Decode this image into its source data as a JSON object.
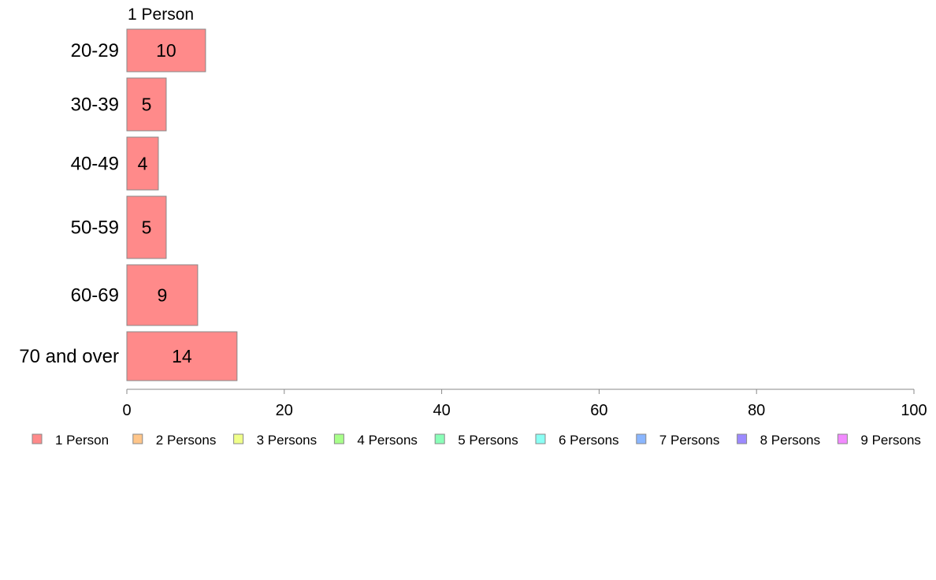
{
  "chart_data": {
    "type": "bar",
    "orientation": "horizontal",
    "stacked": true,
    "categories": [
      "20-29",
      "30-39",
      "40-49",
      "50-59",
      "60-69",
      "70 and over"
    ],
    "series": [
      {
        "name": "1 Person",
        "color": "#ff8a8a",
        "values": [
          10,
          5,
          4,
          5,
          9,
          14
        ]
      },
      {
        "name": "2 Persons",
        "color": "#ffc68a",
        "values": [
          0,
          0,
          0,
          0,
          0,
          0
        ]
      },
      {
        "name": "3 Persons",
        "color": "#f0ff8a",
        "values": [
          0,
          0,
          0,
          0,
          0,
          0
        ]
      },
      {
        "name": "4 Persons",
        "color": "#a8ff8a",
        "values": [
          0,
          0,
          0,
          0,
          0,
          0
        ]
      },
      {
        "name": "5 Persons",
        "color": "#8affb8",
        "values": [
          0,
          0,
          0,
          0,
          0,
          0
        ]
      },
      {
        "name": "6 Persons",
        "color": "#8afff4",
        "values": [
          0,
          0,
          0,
          0,
          0,
          0
        ]
      },
      {
        "name": "7 Persons",
        "color": "#8ab6ff",
        "values": [
          0,
          0,
          0,
          0,
          0,
          0
        ]
      },
      {
        "name": "8 Persons",
        "color": "#9c8aff",
        "values": [
          0,
          0,
          0,
          0,
          0,
          0
        ]
      },
      {
        "name": "9 Persons",
        "color": "#f28aff",
        "values": [
          0,
          0,
          0,
          0,
          0,
          0
        ]
      }
    ],
    "series_label": "1 Person",
    "xlim": [
      0,
      100
    ],
    "x_ticks": [
      0,
      20,
      40,
      60,
      80,
      100
    ],
    "grid": false,
    "legend_position": "bottom",
    "data_labels": true,
    "bar_border_color": "#888888",
    "axis_color": "#888888"
  }
}
